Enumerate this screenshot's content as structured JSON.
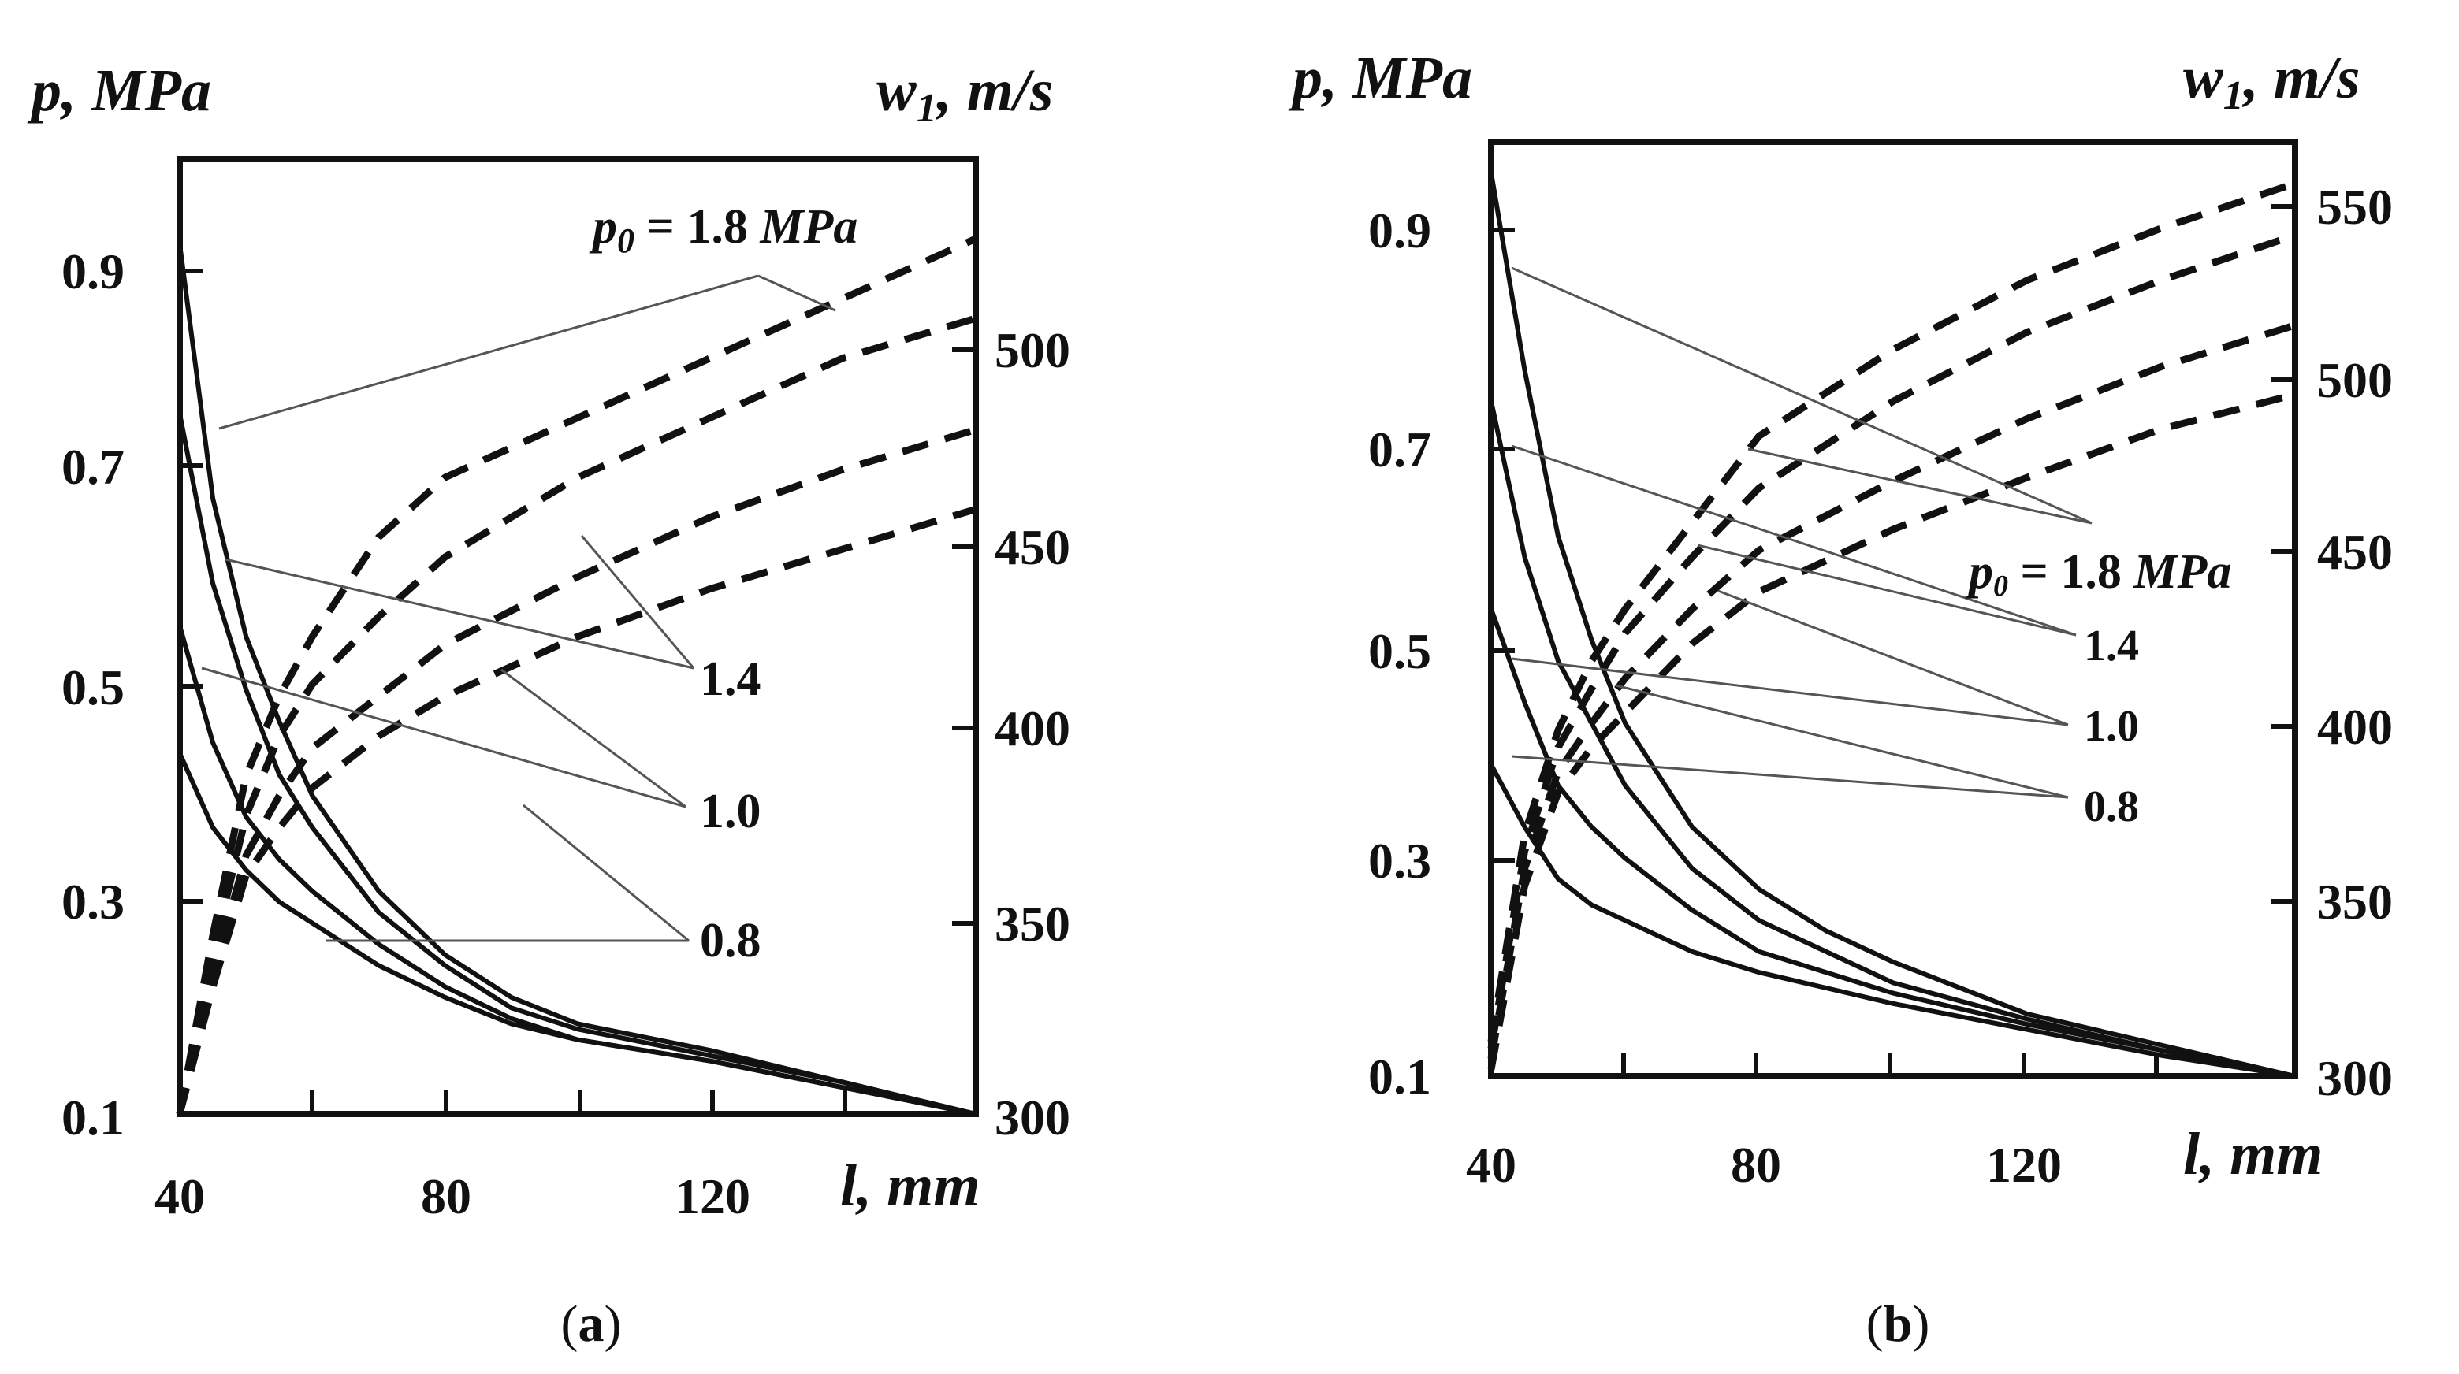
{
  "chart_data": [
    {
      "panel": "a",
      "type": "line",
      "caption_open": "(",
      "caption_letter": "a",
      "caption_close": ")",
      "xlabel": "l, mm",
      "ylabel_left": "p, MPa",
      "ylabel_right": "w1, m/s",
      "xlim": [
        40,
        160
      ],
      "ylim_left": [
        0.1,
        1.0
      ],
      "ylim_right": [
        300,
        540
      ],
      "xticks": [
        "40",
        "80",
        "120"
      ],
      "yticks_left": [
        "0.1",
        "0.3",
        "0.5",
        "0.7",
        "0.9"
      ],
      "yticks_right": [
        "300",
        "350",
        "400",
        "450",
        "500"
      ],
      "pressure_series": [
        {
          "name": "1.8",
          "x": [
            40,
            45,
            50,
            55,
            60,
            70,
            80,
            90,
            100,
            120,
            140,
            160
          ],
          "y": [
            0.92,
            0.68,
            0.55,
            0.47,
            0.4,
            0.31,
            0.25,
            0.21,
            0.185,
            0.16,
            0.13,
            0.1
          ]
        },
        {
          "name": "1.4",
          "x": [
            40,
            45,
            50,
            55,
            60,
            70,
            80,
            90,
            100,
            120,
            140,
            160
          ],
          "y": [
            0.76,
            0.6,
            0.5,
            0.42,
            0.37,
            0.29,
            0.24,
            0.2,
            0.18,
            0.155,
            0.13,
            0.1
          ]
        },
        {
          "name": "1.0",
          "x": [
            40,
            45,
            50,
            55,
            60,
            70,
            80,
            90,
            100,
            120,
            140,
            160
          ],
          "y": [
            0.56,
            0.45,
            0.38,
            0.34,
            0.31,
            0.26,
            0.22,
            0.19,
            0.17,
            0.15,
            0.125,
            0.1
          ]
        },
        {
          "name": "0.8",
          "x": [
            40,
            45,
            50,
            55,
            60,
            70,
            80,
            90,
            100,
            120,
            140,
            160
          ],
          "y": [
            0.44,
            0.37,
            0.33,
            0.3,
            0.28,
            0.24,
            0.21,
            0.185,
            0.17,
            0.15,
            0.125,
            0.1
          ]
        }
      ],
      "velocity_series": [
        {
          "name": "1.8",
          "x": [
            40,
            45,
            50,
            55,
            60,
            70,
            80,
            100,
            120,
            140,
            160
          ],
          "y": [
            300,
            345,
            385,
            405,
            420,
            445,
            460,
            475,
            490,
            505,
            520
          ]
        },
        {
          "name": "1.4",
          "x": [
            40,
            45,
            50,
            55,
            60,
            70,
            80,
            100,
            120,
            140,
            160
          ],
          "y": [
            300,
            340,
            375,
            395,
            408,
            425,
            440,
            460,
            475,
            490,
            500
          ]
        },
        {
          "name": "1.0",
          "x": [
            40,
            45,
            50,
            55,
            60,
            70,
            80,
            100,
            120,
            140,
            160
          ],
          "y": [
            300,
            335,
            365,
            380,
            392,
            405,
            418,
            435,
            450,
            462,
            472
          ]
        },
        {
          "name": "0.8",
          "x": [
            40,
            45,
            50,
            55,
            60,
            70,
            80,
            100,
            120,
            140,
            160
          ],
          "y": [
            300,
            332,
            360,
            372,
            382,
            395,
            405,
            420,
            432,
            442,
            452
          ]
        }
      ],
      "annotations": [
        "p0 = 1.8 MPa",
        "1.4",
        "1.0",
        "0.8"
      ]
    },
    {
      "panel": "b",
      "type": "line",
      "caption_open": "(",
      "caption_letter": "b",
      "caption_close": ")",
      "xlabel": "l, mm",
      "ylabel_left": "p, MPa",
      "ylabel_right": "w1, m/s",
      "xlim": [
        40,
        160
      ],
      "ylim_left": [
        0.1,
        1.0
      ],
      "ylim_right": [
        300,
        570
      ],
      "xticks": [
        "40",
        "80",
        "120"
      ],
      "yticks_left": [
        "0.1",
        "0.3",
        "0.5",
        "0.7",
        "0.9"
      ],
      "yticks_right": [
        "300",
        "350",
        "400",
        "450",
        "500",
        "550"
      ],
      "pressure_series": [
        {
          "name": "1.8",
          "x": [
            40,
            45,
            50,
            55,
            60,
            70,
            80,
            90,
            100,
            120,
            140,
            160
          ],
          "y": [
            0.97,
            0.78,
            0.62,
            0.52,
            0.44,
            0.34,
            0.28,
            0.24,
            0.21,
            0.16,
            0.13,
            0.1
          ]
        },
        {
          "name": "1.4",
          "x": [
            40,
            45,
            50,
            55,
            60,
            70,
            80,
            90,
            100,
            120,
            140,
            160
          ],
          "y": [
            0.75,
            0.6,
            0.5,
            0.44,
            0.38,
            0.3,
            0.25,
            0.22,
            0.19,
            0.155,
            0.125,
            0.1
          ]
        },
        {
          "name": "1.0",
          "x": [
            40,
            45,
            50,
            55,
            60,
            70,
            80,
            90,
            100,
            120,
            140,
            160
          ],
          "y": [
            0.55,
            0.46,
            0.38,
            0.34,
            0.31,
            0.26,
            0.22,
            0.2,
            0.18,
            0.15,
            0.125,
            0.1
          ]
        },
        {
          "name": "0.8",
          "x": [
            40,
            45,
            50,
            55,
            60,
            70,
            80,
            90,
            100,
            120,
            140,
            160
          ],
          "y": [
            0.4,
            0.34,
            0.29,
            0.265,
            0.25,
            0.22,
            0.2,
            0.185,
            0.17,
            0.145,
            0.12,
            0.1
          ]
        }
      ],
      "velocity_series": [
        {
          "name": "1.8",
          "x": [
            40,
            45,
            50,
            55,
            60,
            70,
            80,
            100,
            120,
            140,
            160
          ],
          "y": [
            310,
            370,
            400,
            420,
            435,
            460,
            485,
            510,
            530,
            545,
            558
          ]
        },
        {
          "name": "1.4",
          "x": [
            40,
            45,
            50,
            55,
            60,
            70,
            80,
            100,
            120,
            140,
            160
          ],
          "y": [
            308,
            365,
            395,
            412,
            428,
            450,
            470,
            495,
            515,
            530,
            543
          ]
        },
        {
          "name": "1.0",
          "x": [
            40,
            45,
            50,
            55,
            60,
            70,
            80,
            100,
            120,
            140,
            160
          ],
          "y": [
            305,
            360,
            388,
            402,
            415,
            435,
            452,
            472,
            490,
            505,
            517
          ]
        },
        {
          "name": "0.8",
          "x": [
            40,
            45,
            50,
            55,
            60,
            70,
            80,
            100,
            120,
            140,
            160
          ],
          "y": [
            302,
            355,
            382,
            395,
            405,
            425,
            440,
            458,
            473,
            487,
            497
          ]
        }
      ],
      "annotations": [
        "p0 = 1.8 MPa",
        "1.4",
        "1.0",
        "0.8"
      ]
    }
  ]
}
